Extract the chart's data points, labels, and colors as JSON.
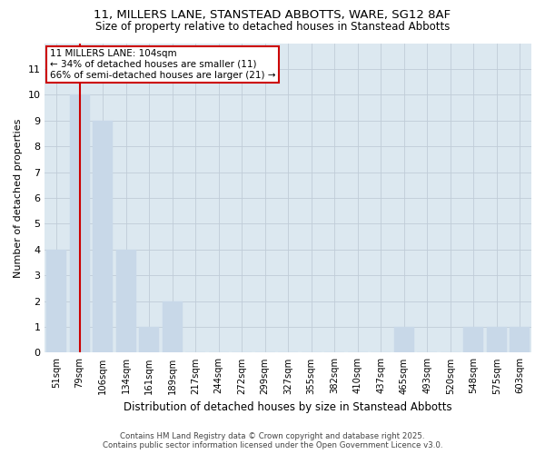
{
  "title1": "11, MILLERS LANE, STANSTEAD ABBOTTS, WARE, SG12 8AF",
  "title2": "Size of property relative to detached houses in Stanstead Abbotts",
  "xlabel": "Distribution of detached houses by size in Stanstead Abbotts",
  "ylabel": "Number of detached properties",
  "categories": [
    "51sqm",
    "79sqm",
    "106sqm",
    "134sqm",
    "161sqm",
    "189sqm",
    "217sqm",
    "244sqm",
    "272sqm",
    "299sqm",
    "327sqm",
    "355sqm",
    "382sqm",
    "410sqm",
    "437sqm",
    "465sqm",
    "493sqm",
    "520sqm",
    "548sqm",
    "575sqm",
    "603sqm"
  ],
  "values": [
    4,
    10,
    9,
    4,
    1,
    2,
    0,
    0,
    0,
    0,
    0,
    0,
    0,
    0,
    0,
    1,
    0,
    0,
    1,
    1,
    1
  ],
  "bar_color": "#c8d8e8",
  "vline_color": "#cc0000",
  "annotation_text": "11 MILLERS LANE: 104sqm\n← 34% of detached houses are smaller (11)\n66% of semi-detached houses are larger (21) →",
  "annotation_box_edgecolor": "#cc0000",
  "footer1": "Contains HM Land Registry data © Crown copyright and database right 2025.",
  "footer2": "Contains public sector information licensed under the Open Government Licence v3.0.",
  "ylim": [
    0,
    12
  ],
  "yticks": [
    0,
    1,
    2,
    3,
    4,
    5,
    6,
    7,
    8,
    9,
    10,
    11,
    12
  ],
  "background_color": "#ffffff",
  "plot_bg_color": "#dce8f0",
  "grid_color": "#c0ccd8",
  "vline_x": 1.0
}
